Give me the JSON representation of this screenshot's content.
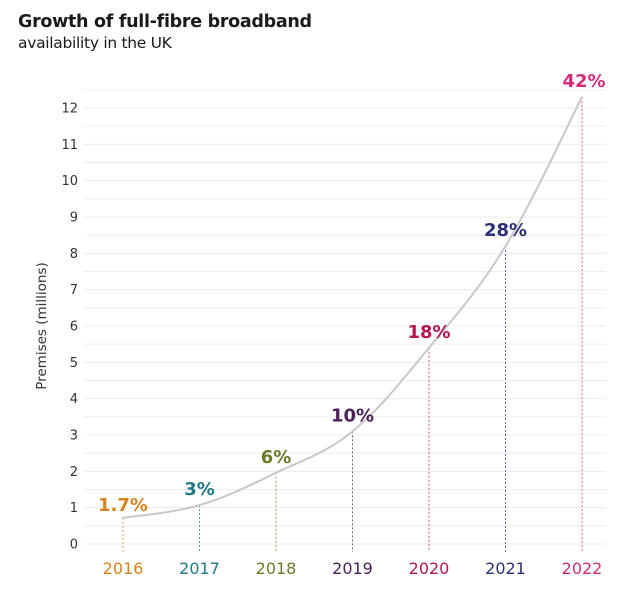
{
  "title": "Growth of full-fibre broadband",
  "subtitle": "availability in the UK",
  "chart_data": {
    "type": "line",
    "title": "Growth of full-fibre broadband availability in the UK",
    "xlabel": "",
    "ylabel": "Premises (millions)",
    "ylim": [
      0,
      12
    ],
    "yticks": [
      "0",
      "1",
      "2",
      "3",
      "4",
      "5",
      "6",
      "7",
      "8",
      "9",
      "10",
      "11",
      "12"
    ],
    "grid": true,
    "categories": [
      "2016",
      "2017",
      "2018",
      "2019",
      "2020",
      "2021",
      "2022"
    ],
    "values": [
      0.72,
      1.07,
      1.96,
      3.1,
      5.4,
      8.2,
      12.3
    ],
    "data_labels": [
      "1.7%",
      "3%",
      "6%",
      "10%",
      "18%",
      "28%",
      "42%"
    ],
    "colors": [
      "#d9821f",
      "#1f7a85",
      "#6b7a2a",
      "#4a1f5c",
      "#b5164f",
      "#2b2f78",
      "#d42a7a"
    ],
    "line_color": "#c8c8c8"
  }
}
